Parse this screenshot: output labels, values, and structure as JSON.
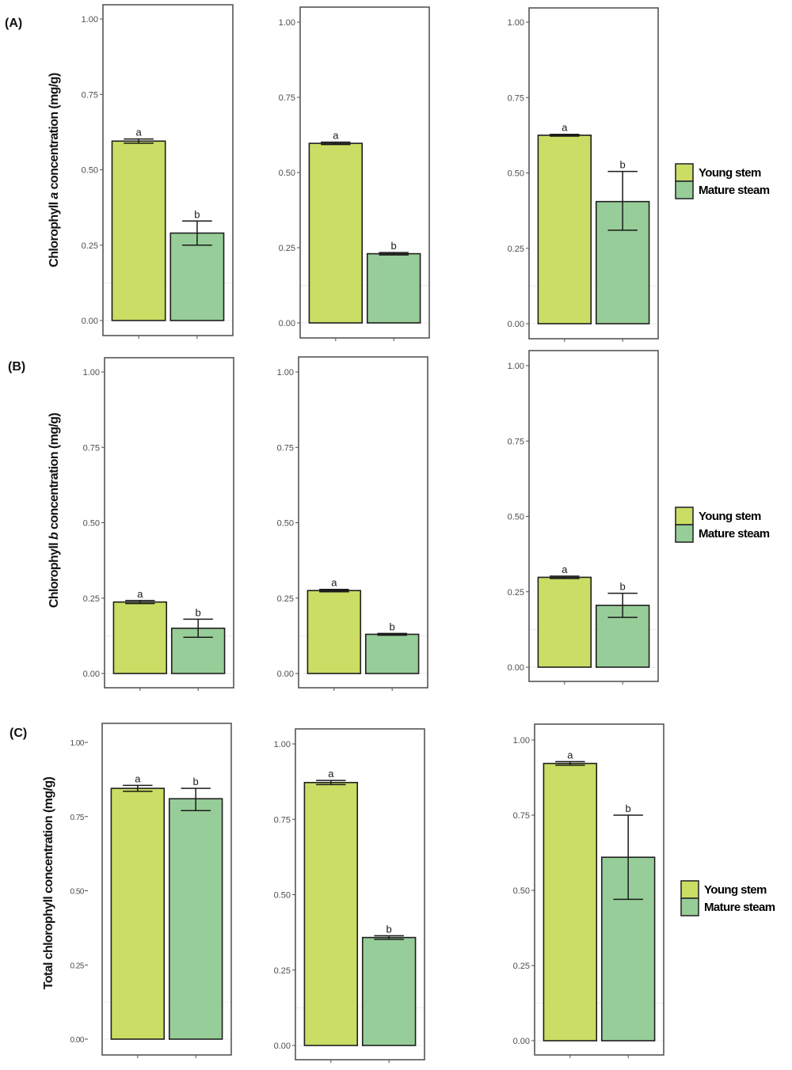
{
  "figure": {
    "rows": [
      {
        "tag": "(A)",
        "ylabel_pre": "Chlorophyll ",
        "ylabel_ital": "a",
        "ylabel_post": " concentration (mg/g)"
      },
      {
        "tag": "(B)",
        "ylabel_pre": "Chlorophyll ",
        "ylabel_ital": "b",
        "ylabel_post": " concentration (mg/g)"
      },
      {
        "tag": "(C)",
        "ylabel_pre": "Total chlorophyll concentration (mg/g)",
        "ylabel_ital": "",
        "ylabel_post": ""
      }
    ],
    "legend": [
      {
        "label": "Young stem",
        "color": "#cbdd64"
      },
      {
        "label": "Mature steam",
        "color": "#97cd98"
      }
    ]
  },
  "chart_data": [
    {
      "type": "bar",
      "row": "A",
      "title": "",
      "ylabel": "Chlorophyll a concentration (mg/g)",
      "ylim": [
        0,
        1
      ],
      "yticks": [
        "0.00",
        "0.25",
        "0.50",
        "0.75",
        "1.00"
      ],
      "categories": [
        "Young stem",
        "Mature steam"
      ],
      "values": [
        0.595,
        0.29
      ],
      "errors_low": [
        0.588,
        0.25
      ],
      "errors_high": [
        0.602,
        0.33
      ],
      "sig_letters": [
        "a",
        "b"
      ]
    },
    {
      "type": "bar",
      "row": "A",
      "title": "",
      "ylabel": "",
      "ylim": [
        0,
        1
      ],
      "yticks": [
        "0.00",
        "0.25",
        "0.50",
        "0.75",
        "1.00"
      ],
      "categories": [
        "Young stem",
        "Mature steam"
      ],
      "values": [
        0.597,
        0.23
      ],
      "errors_low": [
        0.593,
        0.226
      ],
      "errors_high": [
        0.601,
        0.234
      ],
      "sig_letters": [
        "a",
        "b"
      ]
    },
    {
      "type": "bar",
      "row": "A",
      "title": "",
      "ylabel": "",
      "ylim": [
        0,
        1
      ],
      "yticks": [
        "0.00",
        "0.25",
        "0.50",
        "0.75",
        "1.00"
      ],
      "categories": [
        "Young stem",
        "Mature steam"
      ],
      "values": [
        0.625,
        0.405
      ],
      "errors_low": [
        0.622,
        0.31
      ],
      "errors_high": [
        0.628,
        0.505
      ],
      "sig_letters": [
        "a",
        "b"
      ]
    },
    {
      "type": "bar",
      "row": "B",
      "title": "",
      "ylabel": "Chlorophyll b concentration (mg/g)",
      "ylim": [
        0,
        1
      ],
      "yticks": [
        "0.00",
        "0.25",
        "0.50",
        "0.75",
        "1.00"
      ],
      "categories": [
        "Young stem",
        "Mature steam"
      ],
      "values": [
        0.237,
        0.15
      ],
      "errors_low": [
        0.232,
        0.12
      ],
      "errors_high": [
        0.242,
        0.18
      ],
      "sig_letters": [
        "a",
        "b"
      ]
    },
    {
      "type": "bar",
      "row": "B",
      "title": "",
      "ylabel": "",
      "ylim": [
        0,
        1
      ],
      "yticks": [
        "0.00",
        "0.25",
        "0.50",
        "0.75",
        "1.00"
      ],
      "categories": [
        "Young stem",
        "Mature steam"
      ],
      "values": [
        0.275,
        0.13
      ],
      "errors_low": [
        0.271,
        0.127
      ],
      "errors_high": [
        0.279,
        0.133
      ],
      "sig_letters": [
        "a",
        "b"
      ]
    },
    {
      "type": "bar",
      "row": "B",
      "title": "",
      "ylabel": "",
      "ylim": [
        0,
        1
      ],
      "yticks": [
        "0.00",
        "0.25",
        "0.50",
        "0.75",
        "1.00"
      ],
      "categories": [
        "Young stem",
        "Mature steam"
      ],
      "values": [
        0.298,
        0.205
      ],
      "errors_low": [
        0.294,
        0.165
      ],
      "errors_high": [
        0.302,
        0.245
      ],
      "sig_letters": [
        "a",
        "b"
      ]
    },
    {
      "type": "bar",
      "row": "C",
      "title": "",
      "ylabel": "Total chlorophyll concentration (mg/g)",
      "ylim": [
        0,
        1
      ],
      "yticks": [
        "0.00",
        "0.25",
        "0.50",
        "0.75",
        "1.00"
      ],
      "categories": [
        "Young stem",
        "Mature steam"
      ],
      "values": [
        0.845,
        0.81
      ],
      "errors_low": [
        0.835,
        0.77
      ],
      "errors_high": [
        0.855,
        0.845
      ],
      "sig_letters": [
        "a",
        "b"
      ]
    },
    {
      "type": "bar",
      "row": "C",
      "title": "",
      "ylabel": "",
      "ylim": [
        0,
        1
      ],
      "yticks": [
        "0.00",
        "0.25",
        "0.50",
        "0.75",
        "1.00"
      ],
      "categories": [
        "Young stem",
        "Mature steam"
      ],
      "values": [
        0.872,
        0.358
      ],
      "errors_low": [
        0.865,
        0.352
      ],
      "errors_high": [
        0.879,
        0.364
      ],
      "sig_letters": [
        "a",
        "b"
      ]
    },
    {
      "type": "bar",
      "row": "C",
      "title": "",
      "ylabel": "",
      "ylim": [
        0,
        1
      ],
      "yticks": [
        "0.00",
        "0.25",
        "0.50",
        "0.75",
        "1.00"
      ],
      "categories": [
        "Young stem",
        "Mature steam"
      ],
      "values": [
        0.922,
        0.61
      ],
      "errors_low": [
        0.916,
        0.47
      ],
      "errors_high": [
        0.928,
        0.75
      ],
      "sig_letters": [
        "a",
        "b"
      ]
    }
  ]
}
